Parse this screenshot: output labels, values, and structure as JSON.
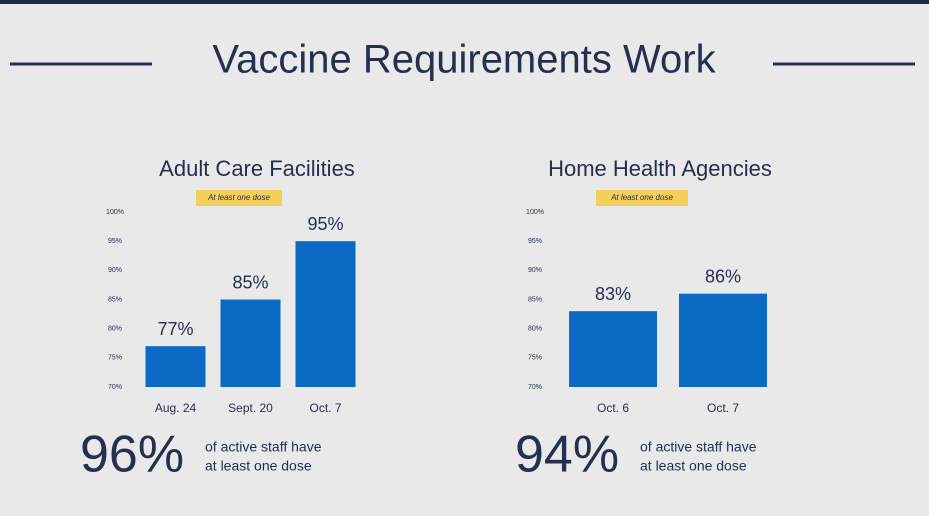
{
  "title": "Vaccine Requirements Work",
  "chart_data": [
    {
      "type": "bar",
      "title": "Adult Care Facilities",
      "annotation": "At least one dose",
      "categories": [
        "Aug. 24",
        "Sept. 20",
        "Oct. 7"
      ],
      "values": [
        77,
        85,
        95
      ],
      "value_labels": [
        "77%",
        "85%",
        "95%"
      ],
      "color": "#0b6bc4",
      "ylim": [
        70,
        100
      ],
      "yticks": [
        {
          "value": 70,
          "label": "70%"
        },
        {
          "value": 75,
          "label": "75%"
        },
        {
          "value": 80,
          "label": "80%"
        },
        {
          "value": 85,
          "label": "85%"
        },
        {
          "value": 90,
          "label": "90%"
        },
        {
          "value": 95,
          "label": "95%"
        },
        {
          "value": 100,
          "label": "100%"
        }
      ],
      "grid": false,
      "callout": "96%",
      "callout_text": [
        "of active staff have",
        "at least one dose"
      ]
    },
    {
      "type": "bar",
      "title": "Home Health Agencies",
      "annotation": "At least one dose",
      "categories": [
        "Oct. 6",
        "Oct. 7"
      ],
      "values": [
        83,
        86
      ],
      "value_labels": [
        "83%",
        "86%"
      ],
      "color": "#0b6bc4",
      "ylim": [
        70,
        100
      ],
      "yticks": [
        {
          "value": 70,
          "label": "70%"
        },
        {
          "value": 75,
          "label": "75%"
        },
        {
          "value": 80,
          "label": "80%"
        },
        {
          "value": 85,
          "label": "85%"
        },
        {
          "value": 90,
          "label": "90%"
        },
        {
          "value": 95,
          "label": "95%"
        },
        {
          "value": 100,
          "label": "100%"
        }
      ],
      "grid": false,
      "callout": "94%",
      "callout_text": [
        "of active staff have",
        "at least one dose"
      ]
    }
  ]
}
